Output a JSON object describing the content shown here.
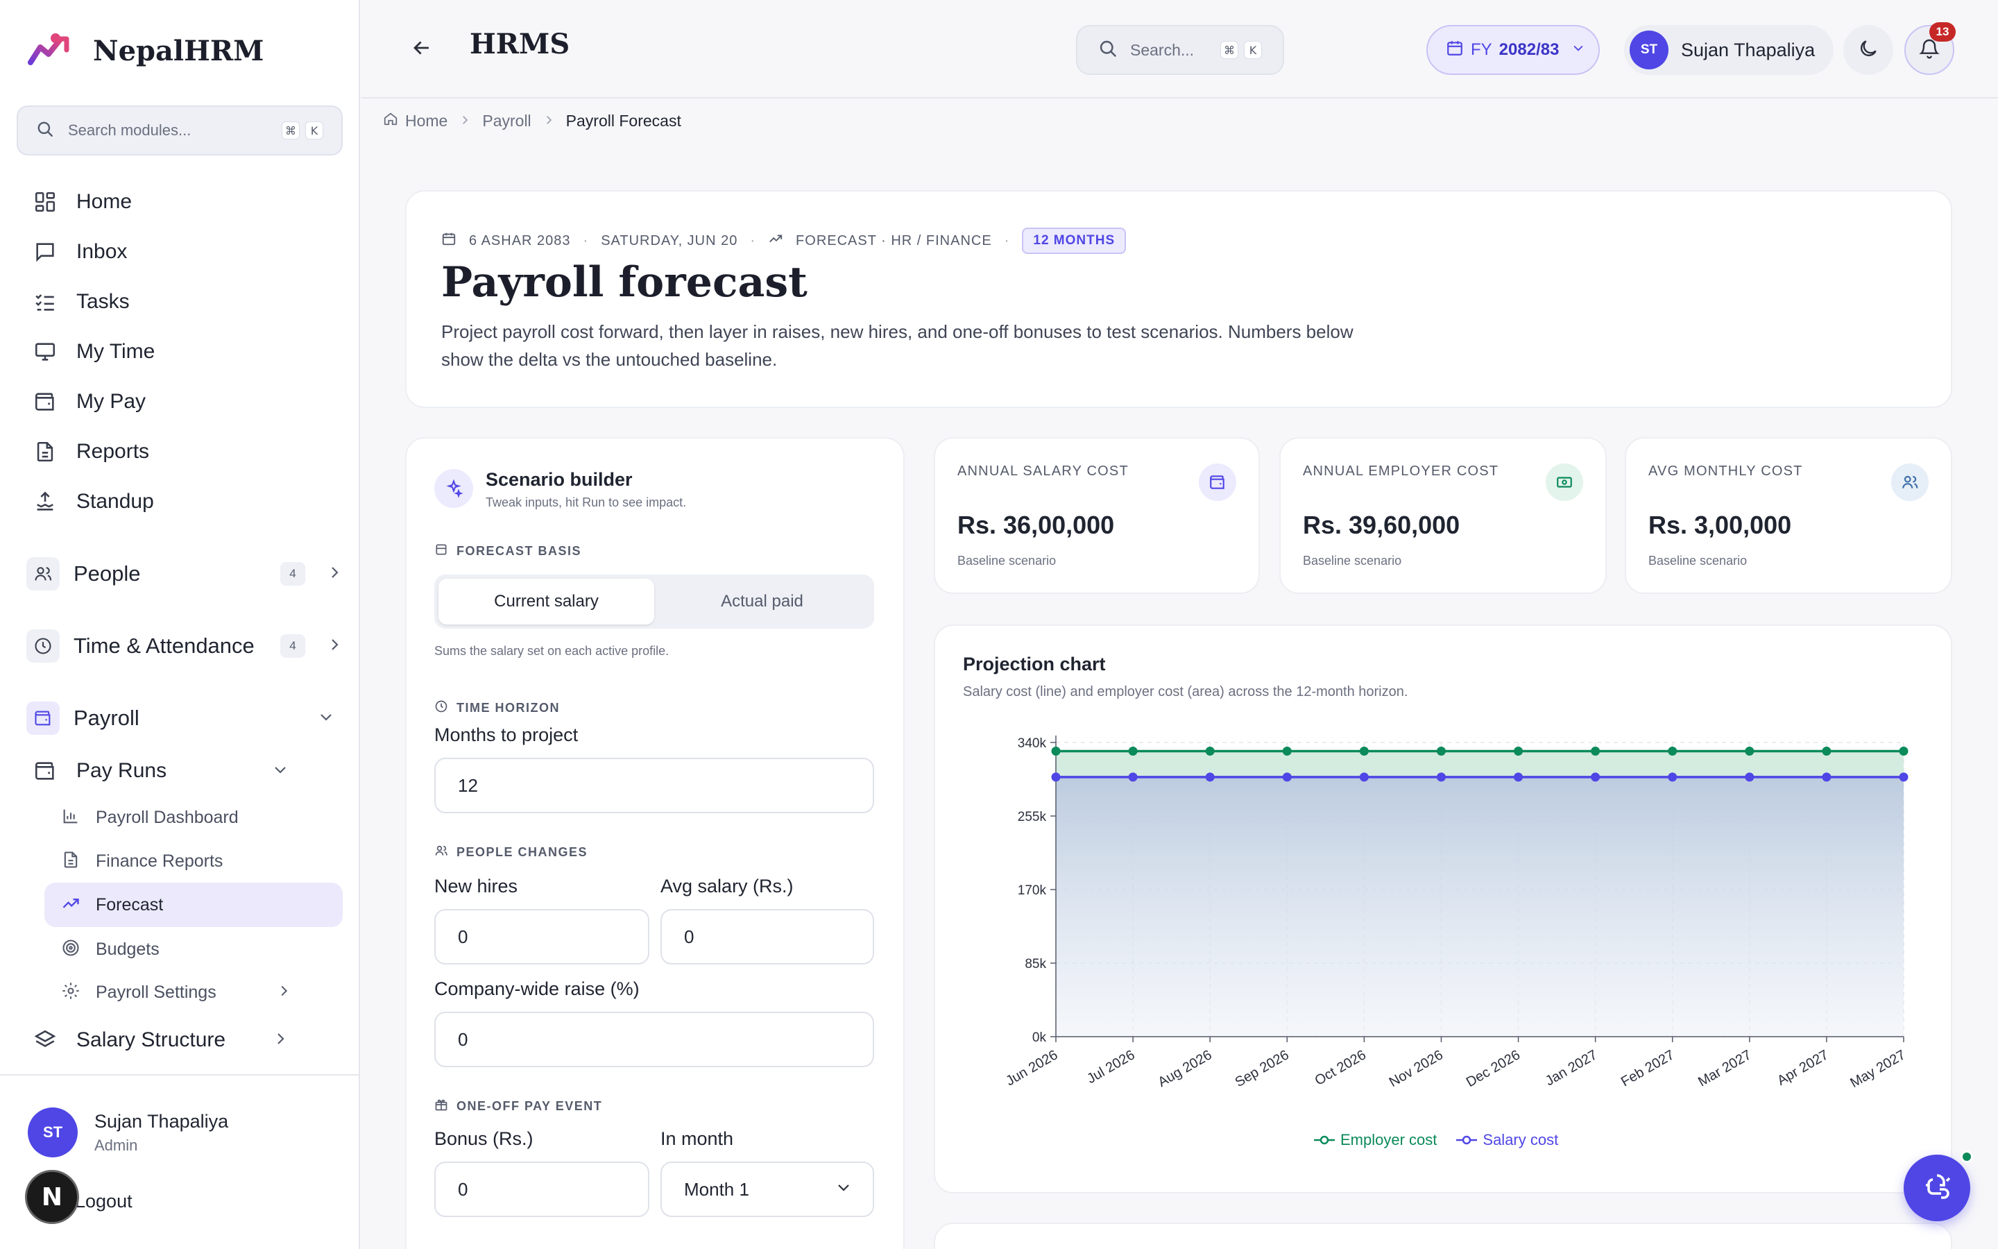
{
  "app": {
    "name": "NepalHRM",
    "section": "HRMS"
  },
  "sidebar": {
    "search_placeholder": "Search modules...",
    "shortcut": [
      "⌘",
      "K"
    ],
    "items": [
      {
        "label": "Home",
        "icon": "dashboard-icon"
      },
      {
        "label": "Inbox",
        "icon": "inbox-icon"
      },
      {
        "label": "Tasks",
        "icon": "tasks-icon"
      },
      {
        "label": "My Time",
        "icon": "monitor-icon"
      },
      {
        "label": "My Pay",
        "icon": "wallet-icon"
      },
      {
        "label": "Reports",
        "icon": "report-icon"
      },
      {
        "label": "Standup",
        "icon": "standup-icon"
      }
    ],
    "groups": [
      {
        "label": "People",
        "count": "4"
      },
      {
        "label": "Time & Attendance",
        "count": "4"
      },
      {
        "label": "Payroll"
      }
    ],
    "pay_runs": "Pay Runs",
    "sub_items": [
      {
        "label": "Payroll Dashboard"
      },
      {
        "label": "Finance Reports"
      },
      {
        "label": "Forecast"
      },
      {
        "label": "Budgets"
      },
      {
        "label": "Payroll Settings"
      }
    ],
    "salary_structure": "Salary Structure",
    "user": {
      "initials": "ST",
      "name": "Sujan Thapaliya",
      "role": "Admin"
    },
    "logout": "Logout",
    "n_badge": "N"
  },
  "topbar": {
    "search_placeholder": "Search...",
    "shortcut": [
      "⌘",
      "K"
    ],
    "fy_prefix": "FY",
    "fy_value": "2082/83",
    "user": {
      "initials": "ST",
      "name": "Sujan Thapaliya"
    },
    "notifications": "13"
  },
  "breadcrumb": [
    "Home",
    "Payroll",
    "Payroll Forecast"
  ],
  "hero": {
    "date_np": "6 ASHAR 2083",
    "date_en": "SATURDAY, JUN 20",
    "category": "FORECAST · HR / FINANCE",
    "horizon_badge": "12 MONTHS",
    "title": "Payroll forecast",
    "description": "Project payroll cost forward, then layer in raises, new hires, and one-off bonuses to test scenarios. Numbers below show the delta vs the untouched baseline."
  },
  "scenario": {
    "title": "Scenario builder",
    "subtitle": "Tweak inputs, hit Run to see impact.",
    "basis_label": "FORECAST BASIS",
    "basis_options": [
      "Current salary",
      "Actual paid"
    ],
    "basis_selected": "Current salary",
    "basis_hint": "Sums the salary set on each active profile.",
    "horizon_label": "TIME HORIZON",
    "months_label": "Months to project",
    "months_value": "12",
    "people_label": "PEOPLE CHANGES",
    "new_hires_label": "New hires",
    "new_hires_value": "0",
    "avg_salary_label": "Avg salary (Rs.)",
    "avg_salary_value": "0",
    "raise_label": "Company-wide raise (%)",
    "raise_value": "0",
    "oneoff_label": "ONE-OFF PAY EVENT",
    "bonus_label": "Bonus (Rs.)",
    "bonus_value": "0",
    "month_label": "In month",
    "month_value": "Month 1"
  },
  "kpis": [
    {
      "label": "ANNUAL SALARY COST",
      "value": "Rs. 36,00,000",
      "sub": "Baseline scenario",
      "icon": "wallet-icon",
      "color": "#4f46e5",
      "bg": "#eceafd"
    },
    {
      "label": "ANNUAL EMPLOYER COST",
      "value": "Rs. 39,60,000",
      "sub": "Baseline scenario",
      "icon": "banknote-icon",
      "color": "#0b8a5a",
      "bg": "#e3f4ec"
    },
    {
      "label": "AVG MONTHLY COST",
      "value": "Rs. 3,00,000",
      "sub": "Baseline scenario",
      "icon": "users-icon",
      "color": "#3f6fa8",
      "bg": "#e6eef7"
    }
  ],
  "chart": {
    "title": "Projection chart",
    "subtitle": "Salary cost (line) and employer cost (area) across the 12-month horizon."
  },
  "chart_data": {
    "type": "line",
    "x": [
      "Jun 2026",
      "Jul 2026",
      "Aug 2026",
      "Sep 2026",
      "Oct 2026",
      "Nov 2026",
      "Dec 2026",
      "Jan 2027",
      "Feb 2027",
      "Mar 2027",
      "Apr 2027",
      "May 2027"
    ],
    "yticks": [
      "0k",
      "85k",
      "170k",
      "255k",
      "340k"
    ],
    "ylim": [
      0,
      340000
    ],
    "series": [
      {
        "name": "Employer cost",
        "type": "area",
        "color": "#0b8a5a",
        "values": [
          330000,
          330000,
          330000,
          330000,
          330000,
          330000,
          330000,
          330000,
          330000,
          330000,
          330000,
          330000
        ]
      },
      {
        "name": "Salary cost",
        "type": "line",
        "color": "#4f46e5",
        "values": [
          300000,
          300000,
          300000,
          300000,
          300000,
          300000,
          300000,
          300000,
          300000,
          300000,
          300000,
          300000
        ]
      }
    ],
    "grid": true,
    "legend": "bottom"
  }
}
